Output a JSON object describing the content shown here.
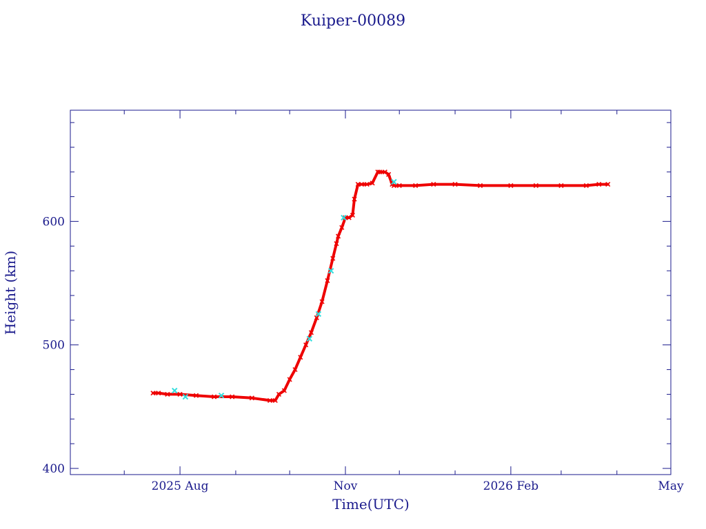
{
  "colors": {
    "axis": "#1a1a8c",
    "text": "#1a1a8c",
    "series_primary": "#ee0000",
    "series_secondary": "#33dddd",
    "background": "#ffffff"
  },
  "chart_data": {
    "type": "scatter",
    "title": "Kuiper-00089",
    "xlabel": "Time(UTC)",
    "ylabel": "Height (km)",
    "x_axis_type": "date",
    "xlim": [
      "2025-06-01",
      "2026-05-01"
    ],
    "ylim": [
      395,
      690
    ],
    "grid": false,
    "legend": "none",
    "x_ticks": [
      {
        "date": "2025-08-01",
        "label": "2025 Aug"
      },
      {
        "date": "2025-11-01",
        "label": "Nov"
      },
      {
        "date": "2026-02-01",
        "label": "2026 Feb"
      },
      {
        "date": "2026-05-01",
        "label": "May"
      }
    ],
    "x_minor_ticks": [
      "2025-07-01",
      "2025-09-01",
      "2025-10-01",
      "2025-12-01",
      "2026-01-01",
      "2026-03-01",
      "2026-04-01"
    ],
    "y_ticks": [
      {
        "value": 400,
        "label": "400"
      },
      {
        "value": 500,
        "label": "500"
      },
      {
        "value": 600,
        "label": "600"
      }
    ],
    "y_minor_step": 20,
    "series": [
      {
        "color": "#ee0000",
        "marker": "x",
        "x": [
          "2025-07-17",
          "2025-07-20",
          "2025-07-25",
          "2025-08-01",
          "2025-08-10",
          "2025-08-20",
          "2025-08-30",
          "2025-09-10",
          "2025-09-20",
          "2025-09-23",
          "2025-09-25",
          "2025-09-28",
          "2025-10-01",
          "2025-10-04",
          "2025-10-07",
          "2025-10-10",
          "2025-10-13",
          "2025-10-16",
          "2025-10-19",
          "2025-10-22",
          "2025-10-25",
          "2025-10-27",
          "2025-10-28",
          "2025-10-30",
          "2025-11-01",
          "2025-11-03",
          "2025-11-05",
          "2025-11-06",
          "2025-11-08",
          "2025-11-10",
          "2025-11-13",
          "2025-11-16",
          "2025-11-19",
          "2025-11-20",
          "2025-11-23",
          "2025-11-25",
          "2025-11-27",
          "2025-11-28",
          "2025-12-01",
          "2025-12-10",
          "2025-12-20",
          "2026-01-01",
          "2026-01-15",
          "2026-02-01",
          "2026-02-15",
          "2026-03-01",
          "2026-03-15",
          "2026-03-22",
          "2026-03-27"
        ],
        "y": [
          461,
          461,
          460,
          460,
          459,
          458,
          458,
          457,
          455,
          455,
          460,
          463,
          472,
          480,
          490,
          500,
          510,
          522,
          535,
          552,
          570,
          582,
          588,
          595,
          603,
          603,
          605,
          618,
          630,
          630,
          630,
          631,
          640,
          640,
          640,
          638,
          630,
          629,
          629,
          629,
          630,
          630,
          629,
          629,
          629,
          629,
          629,
          630,
          630
        ]
      },
      {
        "color": "#33dddd",
        "marker": "x",
        "x": [
          "2025-07-29",
          "2025-08-04",
          "2025-08-24",
          "2025-10-12",
          "2025-10-17",
          "2025-10-24",
          "2025-10-31",
          "2025-11-28"
        ],
        "y": [
          463,
          458,
          459,
          505,
          525,
          560,
          603,
          632
        ]
      }
    ]
  }
}
